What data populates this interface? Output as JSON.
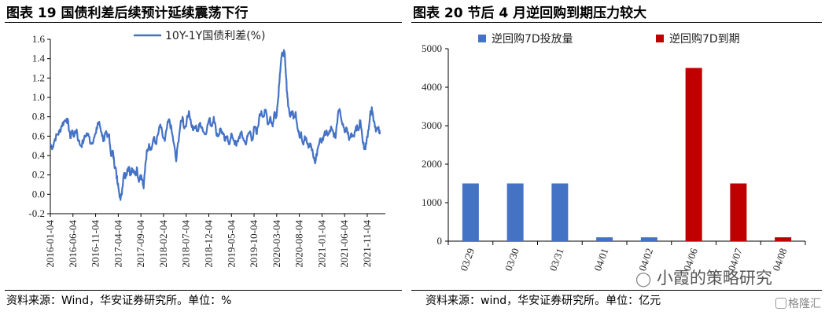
{
  "left": {
    "title": "图表 19 国债利差后续预计延续震荡下行",
    "source": "资料来源：Wind，华安证券研究所。单位：%"
  },
  "right": {
    "title": "图表 20 节后 4 月逆回购到期压力较大",
    "source": "资料来源：wind，华安证券研究所。单位：亿元"
  },
  "watermark": {
    "wechat": "小霞的策略研究",
    "gelonghui": "格隆汇"
  },
  "colors": {
    "line": "#4472C4",
    "bar_blue": "#4472C4",
    "bar_red": "#C00000"
  },
  "chart_data": [
    {
      "type": "line",
      "series": [
        {
          "name": "10Y-1Y国债利差(%)",
          "color": "#4472C4"
        }
      ],
      "ylim": [
        -0.2,
        1.6
      ],
      "yticks": [
        "-0.2",
        "0.0",
        "0.2",
        "0.4",
        "0.6",
        "0.8",
        "1.0",
        "1.2",
        "1.4",
        "1.6"
      ],
      "xticks": [
        "2016-01-04",
        "2016-06-04",
        "2016-11-04",
        "2017-04-04",
        "2017-09-04",
        "2018-02-04",
        "2018-07-04",
        "2018-12-04",
        "2019-05-04",
        "2019-10-04",
        "2020-03-04",
        "2020-08-04",
        "2021-01-04",
        "2021-06-04",
        "2021-11-04"
      ],
      "x_months": [
        0,
        5,
        10,
        15,
        20,
        25,
        30,
        35,
        40,
        45,
        50,
        55,
        60,
        65,
        70
      ],
      "x_range_months": [
        0,
        74
      ],
      "anchors": [
        [
          0.0,
          0.52
        ],
        [
          0.5,
          0.48
        ],
        [
          1.0,
          0.57
        ],
        [
          1.6,
          0.62
        ],
        [
          2.0,
          0.64
        ],
        [
          2.5,
          0.71
        ],
        [
          3.0,
          0.75
        ],
        [
          3.6,
          0.78
        ],
        [
          4.0,
          0.72
        ],
        [
          4.4,
          0.58
        ],
        [
          4.8,
          0.66
        ],
        [
          5.3,
          0.6
        ],
        [
          5.8,
          0.67
        ],
        [
          6.2,
          0.55
        ],
        [
          6.8,
          0.5
        ],
        [
          7.4,
          0.56
        ],
        [
          8.0,
          0.63
        ],
        [
          8.5,
          0.6
        ],
        [
          9.0,
          0.52
        ],
        [
          9.6,
          0.58
        ],
        [
          10.1,
          0.63
        ],
        [
          10.5,
          0.74
        ],
        [
          10.9,
          0.72
        ],
        [
          11.3,
          0.64
        ],
        [
          11.8,
          0.55
        ],
        [
          12.2,
          0.63
        ],
        [
          12.6,
          0.59
        ],
        [
          13.0,
          0.62
        ],
        [
          13.4,
          0.4
        ],
        [
          13.8,
          0.45
        ],
        [
          14.1,
          0.32
        ],
        [
          14.5,
          0.26
        ],
        [
          14.8,
          0.12
        ],
        [
          15.1,
          0.05
        ],
        [
          15.5,
          -0.06
        ],
        [
          15.9,
          0.07
        ],
        [
          16.3,
          0.22
        ],
        [
          16.6,
          0.17
        ],
        [
          17.0,
          0.26
        ],
        [
          17.3,
          0.28
        ],
        [
          17.7,
          0.2
        ],
        [
          18.0,
          0.27
        ],
        [
          18.4,
          0.25
        ],
        [
          18.8,
          0.2
        ],
        [
          19.1,
          0.28
        ],
        [
          19.5,
          0.14
        ],
        [
          19.9,
          0.2
        ],
        [
          20.3,
          0.15
        ],
        [
          20.6,
          0.06
        ],
        [
          21.0,
          0.32
        ],
        [
          21.4,
          0.46
        ],
        [
          21.8,
          0.52
        ],
        [
          22.3,
          0.46
        ],
        [
          22.8,
          0.58
        ],
        [
          23.3,
          0.52
        ],
        [
          23.8,
          0.62
        ],
        [
          24.3,
          0.72
        ],
        [
          24.8,
          0.6
        ],
        [
          25.3,
          0.55
        ],
        [
          25.8,
          0.7
        ],
        [
          26.3,
          0.77
        ],
        [
          26.8,
          0.65
        ],
        [
          27.3,
          0.52
        ],
        [
          27.8,
          0.34
        ],
        [
          28.2,
          0.53
        ],
        [
          28.7,
          0.7
        ],
        [
          29.2,
          0.8
        ],
        [
          29.6,
          0.68
        ],
        [
          30.1,
          0.75
        ],
        [
          30.6,
          0.86
        ],
        [
          31.1,
          0.73
        ],
        [
          31.6,
          0.66
        ],
        [
          32.1,
          0.7
        ],
        [
          32.6,
          0.65
        ],
        [
          33.1,
          0.74
        ],
        [
          33.6,
          0.68
        ],
        [
          34.1,
          0.62
        ],
        [
          34.6,
          0.68
        ],
        [
          35.1,
          0.78
        ],
        [
          35.6,
          0.7
        ],
        [
          36.1,
          0.8
        ],
        [
          36.6,
          0.65
        ],
        [
          37.1,
          0.6
        ],
        [
          37.6,
          0.68
        ],
        [
          38.1,
          0.62
        ],
        [
          38.6,
          0.55
        ],
        [
          39.1,
          0.6
        ],
        [
          39.6,
          0.52
        ],
        [
          40.1,
          0.62
        ],
        [
          40.6,
          0.55
        ],
        [
          41.1,
          0.5
        ],
        [
          41.6,
          0.58
        ],
        [
          42.1,
          0.63
        ],
        [
          42.6,
          0.58
        ],
        [
          43.1,
          0.52
        ],
        [
          43.6,
          0.6
        ],
        [
          44.1,
          0.65
        ],
        [
          44.6,
          0.56
        ],
        [
          45.1,
          0.7
        ],
        [
          45.6,
          0.62
        ],
        [
          46.1,
          0.78
        ],
        [
          46.6,
          0.86
        ],
        [
          47.1,
          0.8
        ],
        [
          47.6,
          0.87
        ],
        [
          48.1,
          0.72
        ],
        [
          48.6,
          0.8
        ],
        [
          49.1,
          0.7
        ],
        [
          49.5,
          0.85
        ],
        [
          49.9,
          0.8
        ],
        [
          50.3,
          0.98
        ],
        [
          50.7,
          1.25
        ],
        [
          51.0,
          1.4
        ],
        [
          51.3,
          1.45
        ],
        [
          51.7,
          1.47
        ],
        [
          52.0,
          1.25
        ],
        [
          52.3,
          1.05
        ],
        [
          52.6,
          0.9
        ],
        [
          53.0,
          0.8
        ],
        [
          53.4,
          0.86
        ],
        [
          53.8,
          0.8
        ],
        [
          54.2,
          0.85
        ],
        [
          54.6,
          0.68
        ],
        [
          55.0,
          0.6
        ],
        [
          55.4,
          0.64
        ],
        [
          55.8,
          0.52
        ],
        [
          56.2,
          0.6
        ],
        [
          56.6,
          0.55
        ],
        [
          57.0,
          0.48
        ],
        [
          57.5,
          0.52
        ],
        [
          58.0,
          0.42
        ],
        [
          58.5,
          0.32
        ],
        [
          59.0,
          0.46
        ],
        [
          59.5,
          0.56
        ],
        [
          60.0,
          0.55
        ],
        [
          60.5,
          0.62
        ],
        [
          61.0,
          0.66
        ],
        [
          61.5,
          0.62
        ],
        [
          62.0,
          0.7
        ],
        [
          62.5,
          0.64
        ],
        [
          63.0,
          0.58
        ],
        [
          63.5,
          0.82
        ],
        [
          64.0,
          0.86
        ],
        [
          64.5,
          0.72
        ],
        [
          65.0,
          0.64
        ],
        [
          65.5,
          0.68
        ],
        [
          66.0,
          0.56
        ],
        [
          66.5,
          0.63
        ],
        [
          67.0,
          0.6
        ],
        [
          67.5,
          0.7
        ],
        [
          68.0,
          0.66
        ],
        [
          68.5,
          0.76
        ],
        [
          69.0,
          0.54
        ],
        [
          69.4,
          0.48
        ],
        [
          69.8,
          0.52
        ],
        [
          70.2,
          0.66
        ],
        [
          70.6,
          0.8
        ],
        [
          71.0,
          0.9
        ],
        [
          71.3,
          0.8
        ],
        [
          71.6,
          0.74
        ],
        [
          72.0,
          0.66
        ],
        [
          72.4,
          0.68
        ],
        [
          72.8,
          0.62
        ]
      ]
    },
    {
      "type": "bar",
      "categories": [
        "03/29",
        "03/30",
        "03/31",
        "04/01",
        "04/02",
        "04/06",
        "04/07",
        "04/08"
      ],
      "series": [
        {
          "name": "逆回购7D投放量",
          "color": "#4472C4",
          "values": [
            1500,
            1500,
            1500,
            100,
            100,
            0,
            0,
            0
          ]
        },
        {
          "name": "逆回购7D到期",
          "color": "#C00000",
          "values": [
            0,
            0,
            0,
            0,
            0,
            4500,
            1500,
            100
          ]
        }
      ],
      "ylim": [
        0,
        5000
      ],
      "yticks": [
        "0",
        "1000",
        "2000",
        "3000",
        "4000",
        "5000"
      ]
    }
  ]
}
